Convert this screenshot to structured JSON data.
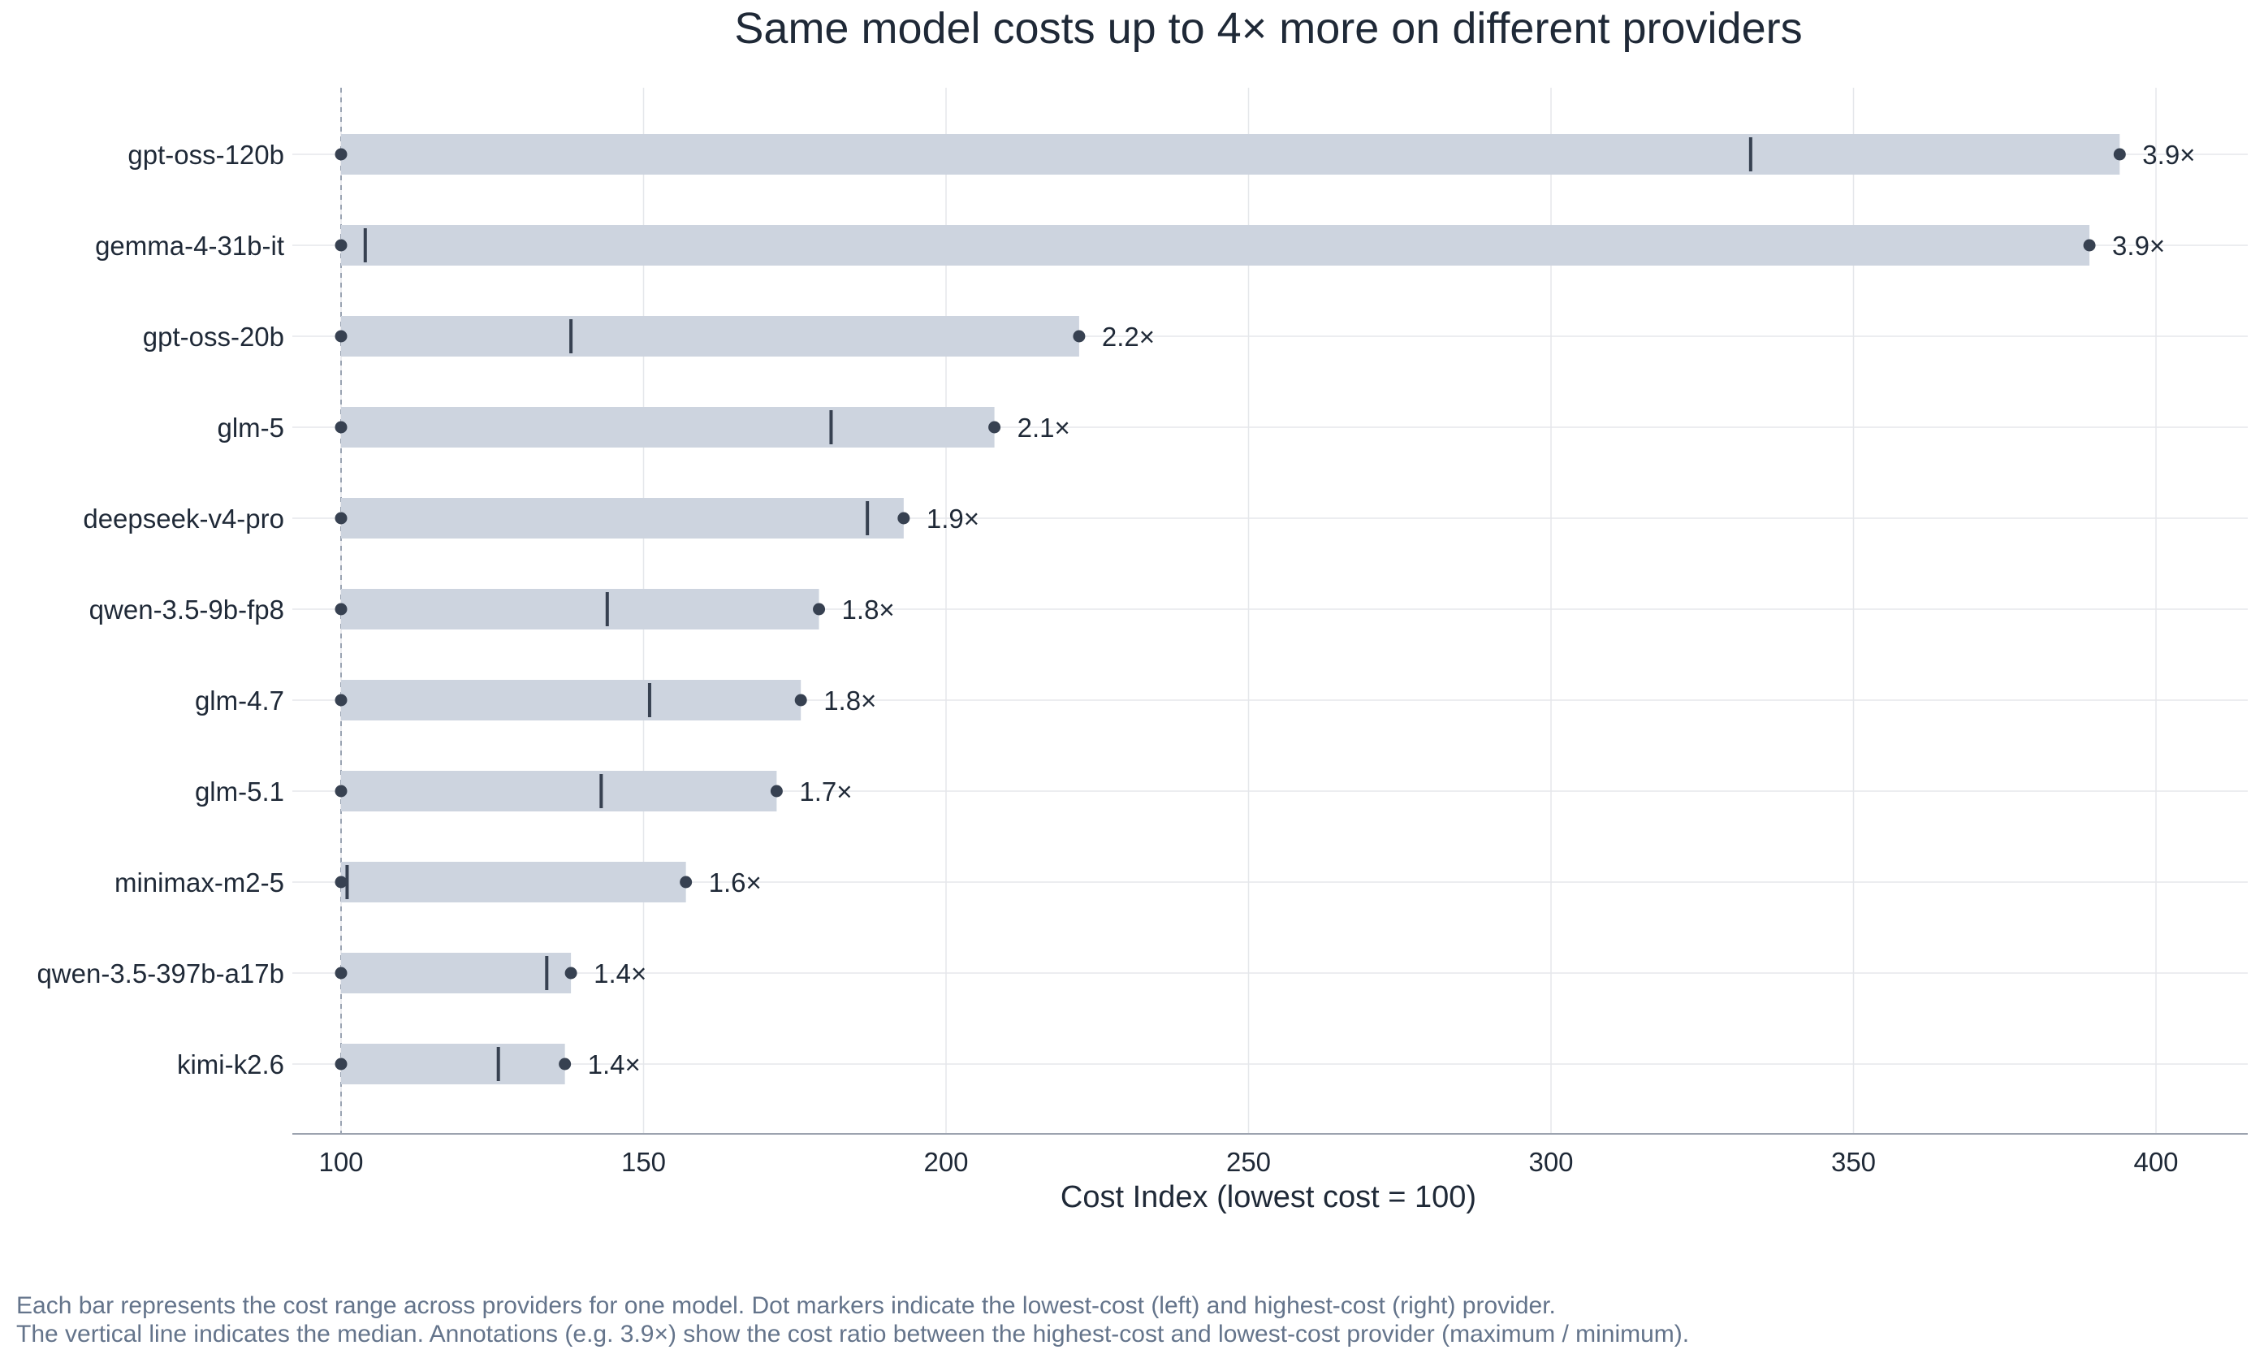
{
  "chart_data": {
    "type": "range-bar",
    "title": "Same model costs up to 4× more on different providers",
    "xlabel": "Cost Index (lowest cost = 100)",
    "ylabel": "",
    "xlim": [
      92,
      415
    ],
    "xticks": [
      100,
      150,
      200,
      250,
      300,
      350,
      400
    ],
    "grid": true,
    "reference_line": 100,
    "categories": [
      "gpt-oss-120b",
      "gemma-4-31b-it",
      "gpt-oss-20b",
      "glm-5",
      "deepseek-v4-pro",
      "qwen-3.5-9b-fp8",
      "glm-4.7",
      "glm-5.1",
      "minimax-m2-5",
      "qwen-3.5-397b-a17b",
      "kimi-k2.6"
    ],
    "min": [
      100,
      100,
      100,
      100,
      100,
      100,
      100,
      100,
      100,
      100,
      100
    ],
    "median": [
      333,
      104,
      138,
      181,
      187,
      144,
      151,
      143,
      101,
      134,
      126
    ],
    "max": [
      394,
      389,
      222,
      208,
      193,
      179,
      176,
      172,
      157,
      138,
      137
    ],
    "ratio_labels": [
      "3.9×",
      "3.9×",
      "2.2×",
      "2.1×",
      "1.9×",
      "1.8×",
      "1.8×",
      "1.7×",
      "1.6×",
      "1.4×",
      "1.4×"
    ],
    "colors": {
      "bar": "#cdd4df",
      "marker": "#374151",
      "grid": "#e5e7eb",
      "reference": "#9aa3b2"
    }
  },
  "caption": {
    "line1": "Each bar represents the cost range across providers for one model. Dot markers indicate the lowest-cost (left) and highest-cost (right) provider.",
    "line2": "The vertical line indicates the median. Annotations (e.g. 3.9×) show the cost ratio between the highest-cost and lowest-cost provider (maximum / minimum)."
  }
}
